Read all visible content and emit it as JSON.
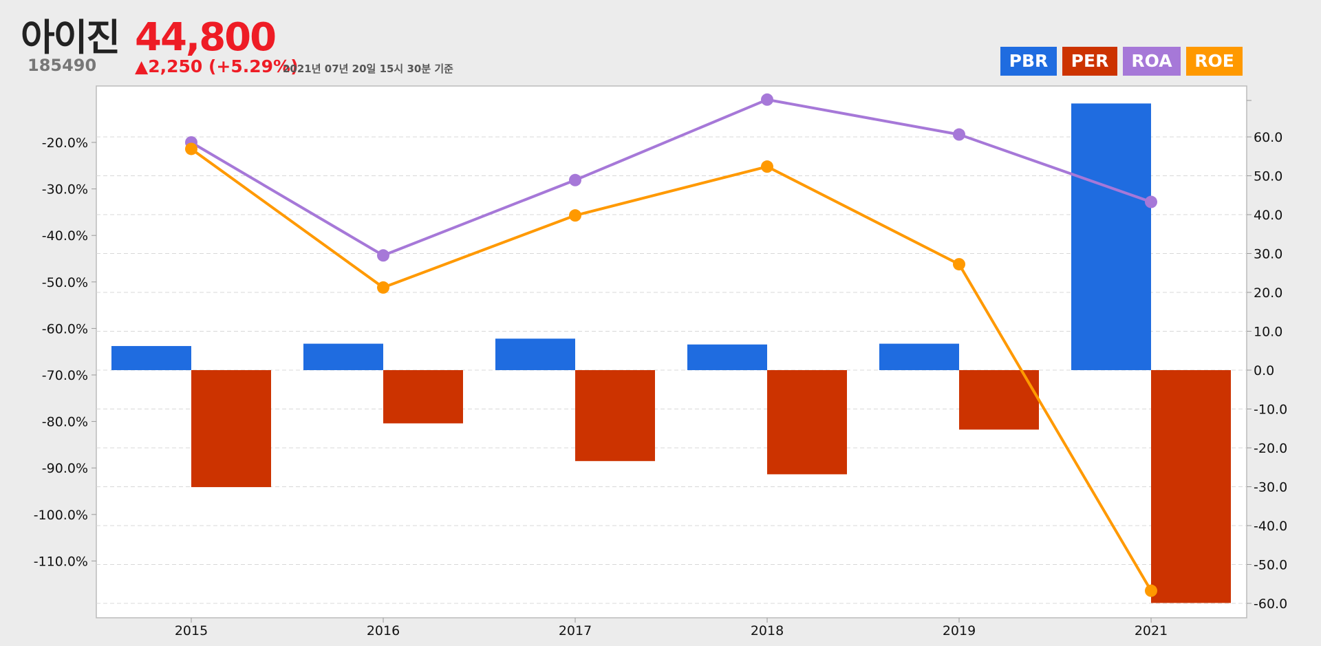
{
  "stock": {
    "name": "아이진",
    "code": "185490",
    "price": "44,800",
    "change": "▲2,250 (+5.29%)",
    "timestamp": "2021년 07년 20일 15시 30분 기준",
    "price_color": "#ee1c25"
  },
  "legend": [
    {
      "label": "PBR",
      "color": "#1f6ce0"
    },
    {
      "label": "PER",
      "color": "#cc3300"
    },
    {
      "label": "ROA",
      "color": "#a678d8"
    },
    {
      "label": "ROE",
      "color": "#ff9900"
    }
  ],
  "chart_data": {
    "type": "bar",
    "categories": [
      "2015",
      "2016",
      "2017",
      "2018",
      "2019",
      "2021"
    ],
    "left_axis": {
      "ticks": [
        "-20.0%",
        "-30.0%",
        "-40.0%",
        "-50.0%",
        "-60.0%",
        "-70.0%",
        "-80.0%",
        "-90.0%",
        "-100.0%",
        "-110.0%"
      ],
      "range": [
        -120,
        -10
      ]
    },
    "right_axis": {
      "ticks": [
        "60.0",
        "50.0",
        "40.0",
        "30.0",
        "20.0",
        "10.0",
        "0.0",
        "-10.0",
        "-20.0",
        "-30.0",
        "-40.0",
        "-50.0",
        "-60.0"
      ],
      "range": [
        -60,
        70
      ]
    },
    "grid": "dashed horizontal",
    "legend_position": "top-right",
    "series": [
      {
        "name": "PBR",
        "type": "bar",
        "axis": "right",
        "color": "#1f6ce0",
        "values": [
          6.2,
          6.8,
          8.1,
          6.6,
          6.8,
          68.6
        ]
      },
      {
        "name": "PER",
        "type": "bar",
        "axis": "right",
        "color": "#cc3300",
        "values": [
          -30.1,
          -13.7,
          -23.4,
          -26.8,
          -15.3,
          -59.9
        ]
      },
      {
        "name": "ROA",
        "type": "line",
        "axis": "left",
        "color": "#a678d8",
        "values": [
          -20.0,
          -44.3,
          -28.1,
          -10.8,
          -18.3,
          -32.8
        ]
      },
      {
        "name": "ROE",
        "type": "line",
        "axis": "left",
        "color": "#ff9900",
        "values": [
          -21.4,
          -51.2,
          -35.7,
          -25.2,
          -46.2,
          -116.4
        ]
      }
    ]
  }
}
